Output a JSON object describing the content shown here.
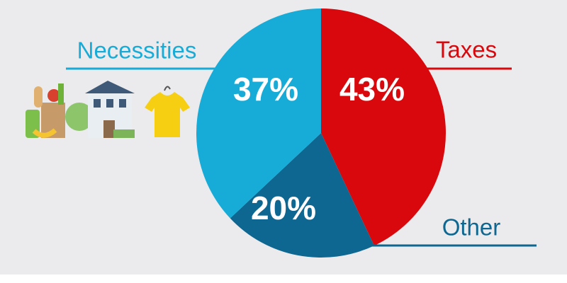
{
  "chart_data": {
    "type": "pie",
    "categories": [
      "Taxes",
      "Other",
      "Necessities"
    ],
    "values": [
      43,
      20,
      37
    ],
    "value_labels": [
      "43%",
      "20%",
      "37%"
    ],
    "colors": [
      "#d9080d",
      "#0d6791",
      "#17acd8"
    ]
  }
}
